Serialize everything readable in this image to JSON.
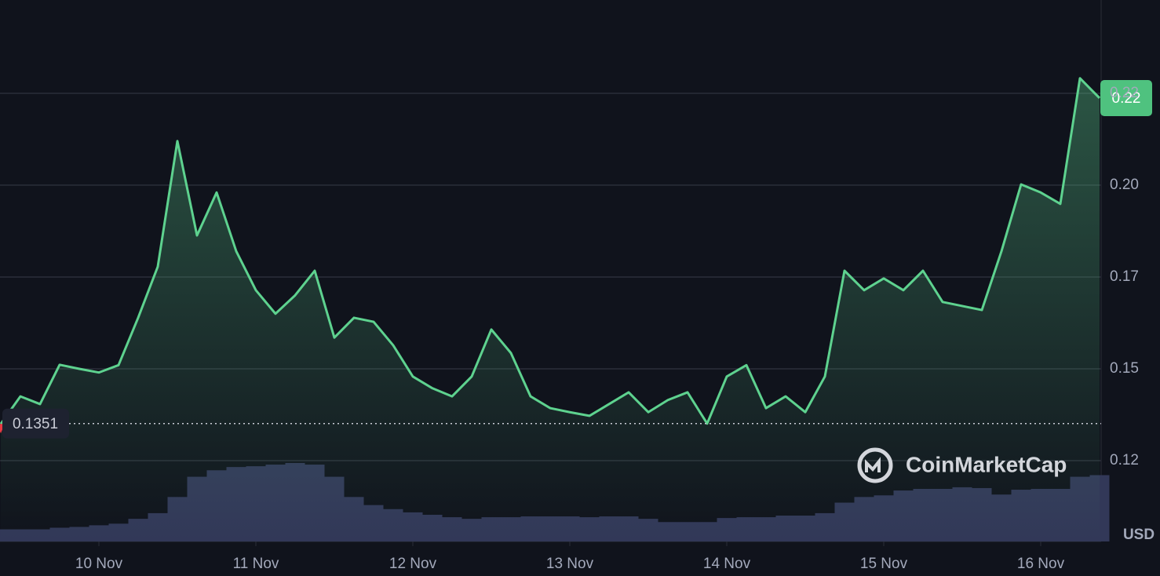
{
  "chart_data": {
    "type": "line",
    "currency": "USD",
    "watermark": "CoinMarketCap",
    "categories": [
      null,
      null,
      null,
      null,
      null,
      "10 Nov",
      null,
      null,
      null,
      null,
      null,
      null,
      null,
      "11 Nov",
      null,
      null,
      null,
      null,
      null,
      null,
      null,
      "12 Nov",
      null,
      null,
      null,
      null,
      null,
      null,
      null,
      "13 Nov",
      null,
      null,
      null,
      null,
      null,
      null,
      null,
      "14 Nov",
      null,
      null,
      null,
      null,
      null,
      null,
      null,
      "15 Nov",
      null,
      null,
      null,
      null,
      null,
      null,
      null,
      "16 Nov",
      null,
      null,
      null
    ],
    "series": [
      {
        "color": "#5ed28f",
        "values": [
          0.135,
          0.1425,
          0.1404,
          0.1511,
          0.15,
          0.149,
          0.151,
          0.1639,
          0.1778,
          0.212,
          0.1863,
          0.198,
          0.182,
          0.1714,
          0.165,
          0.17,
          0.1767,
          0.1585,
          0.1639,
          0.1628,
          0.1564,
          0.1479,
          0.1447,
          0.1425,
          0.1479,
          0.1607,
          0.1543,
          0.1425,
          0.1393,
          0.1382,
          0.1372,
          0.1404,
          0.1436,
          0.1382,
          0.1415,
          0.1436,
          0.1351,
          0.1479,
          0.151,
          0.1393,
          0.1425,
          0.1382,
          0.1479,
          0.1767,
          0.1714,
          0.1746,
          0.1714,
          0.1767,
          0.1682,
          0.1671,
          0.166,
          0.182,
          0.2002,
          0.198,
          0.1949,
          0.2291,
          0.2237
        ]
      }
    ],
    "volume": [
      15,
      15,
      15,
      17,
      18,
      20,
      22,
      28,
      35,
      55,
      80,
      88,
      92,
      93,
      95,
      97,
      95,
      80,
      55,
      45,
      40,
      36,
      33,
      30,
      28,
      30,
      30,
      31,
      31,
      31,
      30,
      31,
      31,
      28,
      24,
      24,
      24,
      29,
      30,
      30,
      32,
      32,
      35,
      48,
      55,
      57,
      63,
      65,
      65,
      67,
      66,
      58,
      64,
      65,
      65,
      80,
      82
    ],
    "current_price": {
      "value": 0.2237,
      "label": "0.22"
    },
    "low": 0.1351,
    "ylim": [
      0.103,
      0.2504
    ],
    "yticks": [
      {
        "value": 0.125,
        "label": "0.12"
      },
      {
        "value": 0.15,
        "label": "0.15"
      },
      {
        "value": 0.175,
        "label": "0.17"
      },
      {
        "value": 0.2,
        "label": "0.20"
      },
      {
        "value": 0.225,
        "label": "0.22"
      }
    ],
    "grid": true
  }
}
